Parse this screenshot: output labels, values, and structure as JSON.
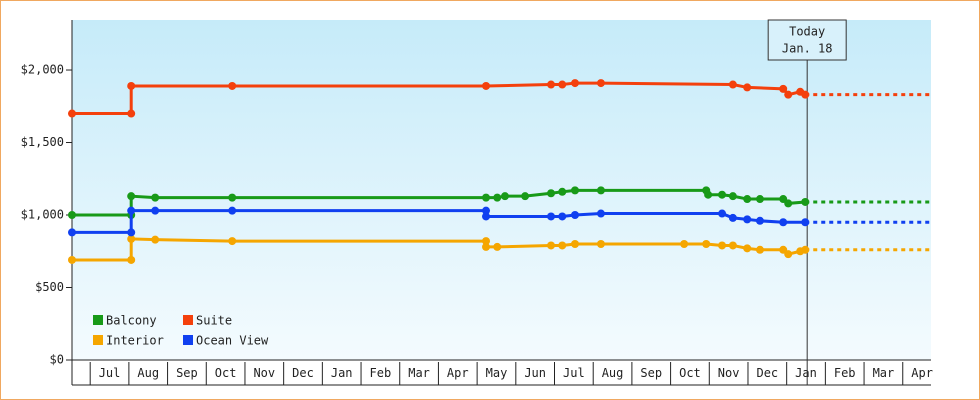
{
  "chart_data": {
    "type": "line",
    "xlim": [
      -0.47,
      21.73
    ],
    "xticks": [
      {
        "value": 0.5,
        "label": "Jul"
      },
      {
        "value": 1.5,
        "label": "Aug"
      },
      {
        "value": 2.5,
        "label": "Sep"
      },
      {
        "value": 3.5,
        "label": "Oct"
      },
      {
        "value": 4.5,
        "label": "Nov"
      },
      {
        "value": 5.5,
        "label": "Dec"
      },
      {
        "value": 6.5,
        "label": "Jan"
      },
      {
        "value": 7.5,
        "label": "Feb"
      },
      {
        "value": 8.5,
        "label": "Mar"
      },
      {
        "value": 9.5,
        "label": "Apr"
      },
      {
        "value": 10.5,
        "label": "May"
      },
      {
        "value": 11.5,
        "label": "Jun"
      },
      {
        "value": 12.5,
        "label": "Jul"
      },
      {
        "value": 13.5,
        "label": "Aug"
      },
      {
        "value": 14.5,
        "label": "Sep"
      },
      {
        "value": 15.5,
        "label": "Oct"
      },
      {
        "value": 16.5,
        "label": "Nov"
      },
      {
        "value": 17.5,
        "label": "Dec"
      },
      {
        "value": 18.5,
        "label": "Jan"
      },
      {
        "value": 19.5,
        "label": "Feb"
      },
      {
        "value": 20.5,
        "label": "Mar"
      },
      {
        "value": 21.5,
        "label": "Apr"
      }
    ],
    "ylim": [
      0,
      2345
    ],
    "yticks": [
      {
        "value": 0,
        "label": "$0"
      },
      {
        "value": 500,
        "label": "$500"
      },
      {
        "value": 1000,
        "label": "$1,000"
      },
      {
        "value": 1500,
        "label": "$1,500"
      },
      {
        "value": 2000,
        "label": "$2,000"
      }
    ],
    "today": {
      "x": 18.53,
      "label": [
        "Today",
        "Jan. 18"
      ]
    },
    "series": [
      {
        "name": "Balcony",
        "color": "#189a18",
        "x": [
          -0.47,
          1.06,
          1.06,
          1.68,
          3.67,
          10.23,
          10.52,
          10.72,
          11.24,
          11.91,
          12.2,
          12.53,
          13.2,
          15.92,
          15.97,
          16.33,
          16.61,
          16.98,
          17.31,
          17.91,
          18.04,
          18.48
        ],
        "values": [
          1000,
          1000,
          1130,
          1120,
          1120,
          1120,
          1120,
          1130,
          1130,
          1150,
          1160,
          1170,
          1170,
          1170,
          1140,
          1140,
          1130,
          1110,
          1110,
          1110,
          1080,
          1090
        ]
      },
      {
        "name": "Suite",
        "color": "#f4400c",
        "x": [
          -0.47,
          1.06,
          1.06,
          3.67,
          10.23,
          11.91,
          12.2,
          12.53,
          13.2,
          16.61,
          16.98,
          17.91,
          18.04,
          18.35,
          18.48
        ],
        "values": [
          1700,
          1700,
          1890,
          1890,
          1890,
          1900,
          1900,
          1910,
          1910,
          1900,
          1880,
          1870,
          1830,
          1850,
          1830
        ]
      },
      {
        "name": "Interior",
        "color": "#f5a600",
        "x": [
          -0.47,
          1.06,
          1.06,
          1.68,
          3.67,
          10.23,
          10.23,
          10.52,
          11.91,
          12.2,
          12.53,
          13.2,
          15.35,
          15.92,
          16.33,
          16.61,
          16.98,
          17.31,
          17.91,
          18.04,
          18.35,
          18.48
        ],
        "values": [
          690,
          690,
          835,
          830,
          820,
          820,
          780,
          780,
          790,
          790,
          800,
          800,
          800,
          800,
          790,
          790,
          770,
          760,
          760,
          730,
          750,
          760
        ]
      },
      {
        "name": "Ocean View",
        "color": "#1040f0",
        "x": [
          -0.47,
          1.06,
          1.06,
          1.68,
          3.67,
          10.23,
          10.23,
          11.91,
          12.2,
          12.53,
          13.2,
          16.33,
          16.61,
          16.98,
          17.31,
          17.91,
          18.48
        ],
        "values": [
          880,
          880,
          1030,
          1030,
          1030,
          1030,
          990,
          990,
          990,
          1000,
          1010,
          1010,
          980,
          970,
          960,
          950,
          950
        ]
      }
    ]
  }
}
